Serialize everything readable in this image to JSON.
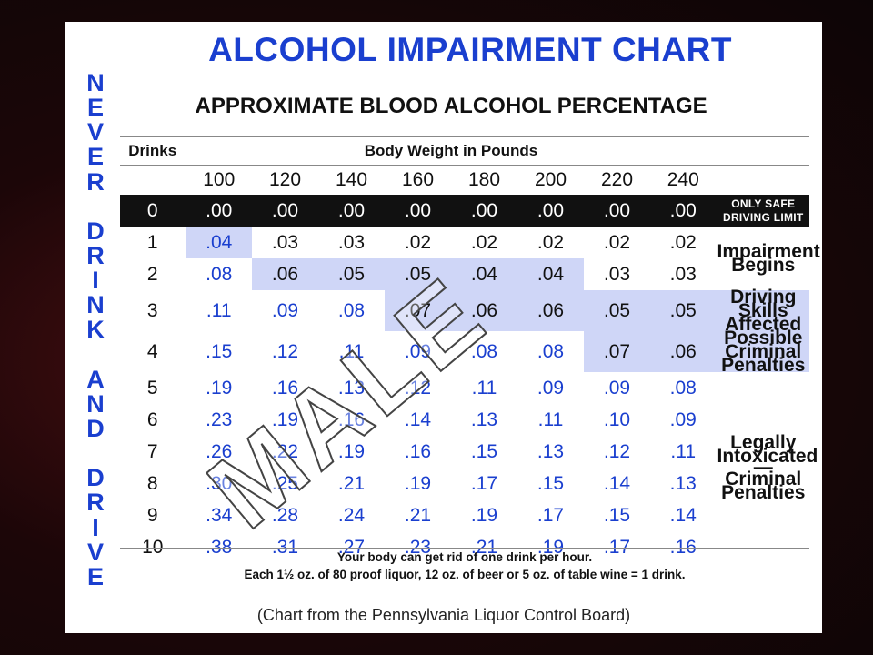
{
  "title": "ALCOHOL IMPAIRMENT CHART",
  "vertical_slogan": [
    "N",
    "E",
    "V",
    "E",
    "R",
    "",
    "D",
    "R",
    "I",
    "N",
    "K",
    "",
    "A",
    "N",
    "D",
    "",
    "D",
    "R",
    "I",
    "V",
    "E"
  ],
  "subtitle": "APPROXIMATE BLOOD ALCOHOL PERCENTAGE",
  "drinks_header": "Drinks",
  "weight_header": "Body Weight in Pounds",
  "weights": [
    "100",
    "120",
    "140",
    "160",
    "180",
    "200",
    "220",
    "240"
  ],
  "rows": [
    {
      "drinks": "0",
      "values": [
        ".00",
        ".00",
        ".00",
        ".00",
        ".00",
        ".00",
        ".00",
        ".00"
      ]
    },
    {
      "drinks": "1",
      "values": [
        ".04",
        ".03",
        ".03",
        ".02",
        ".02",
        ".02",
        ".02",
        ".02"
      ]
    },
    {
      "drinks": "2",
      "values": [
        ".08",
        ".06",
        ".05",
        ".05",
        ".04",
        ".04",
        ".03",
        ".03"
      ]
    },
    {
      "drinks": "3",
      "values": [
        ".11",
        ".09",
        ".08",
        ".07",
        ".06",
        ".06",
        ".05",
        ".05"
      ]
    },
    {
      "drinks": "4",
      "values": [
        ".15",
        ".12",
        ".11",
        ".09",
        ".08",
        ".08",
        ".07",
        ".06"
      ]
    },
    {
      "drinks": "5",
      "values": [
        ".19",
        ".16",
        ".13",
        ".12",
        ".11",
        ".09",
        ".09",
        ".08"
      ]
    },
    {
      "drinks": "6",
      "values": [
        ".23",
        ".19",
        ".16",
        ".14",
        ".13",
        ".11",
        ".10",
        ".09"
      ]
    },
    {
      "drinks": "7",
      "values": [
        ".26",
        ".22",
        ".19",
        ".16",
        ".15",
        ".13",
        ".12",
        ".11"
      ]
    },
    {
      "drinks": "8",
      "values": [
        ".30",
        ".25",
        ".21",
        ".19",
        ".17",
        ".15",
        ".14",
        ".13"
      ]
    },
    {
      "drinks": "9",
      "values": [
        ".34",
        ".28",
        ".24",
        ".21",
        ".19",
        ".17",
        ".15",
        ".14"
      ]
    },
    {
      "drinks": "10",
      "values": [
        ".38",
        ".31",
        ".27",
        ".23",
        ".21",
        ".19",
        ".17",
        ".16"
      ]
    }
  ],
  "side_labels": {
    "only_safe_1": "ONLY SAFE",
    "only_safe_2": "DRIVING LIMIT",
    "impairment_1": "Impairment",
    "impairment_2": "Begins",
    "driving_skills_1": "Driving Skills",
    "driving_skills_2": "Affected",
    "possible_1": "Possible",
    "possible_2": "Criminal Penalties",
    "legally_1": "Legally",
    "legally_2": "Intoxicated",
    "dash": "—",
    "criminal_1": "Criminal",
    "criminal_2": "Penalties"
  },
  "footnote_line1": "Your body can get rid of one drink per hour.",
  "footnote_line2": "Each 1½ oz. of 80 proof liquor, 12 oz. of beer or 5 oz. of table wine = 1 drink.",
  "source": "(Chart from the Pennsylvania Liquor Control Board)",
  "watermark": "MALE",
  "highlight_cells": [
    [
      1,
      0
    ],
    [
      2,
      1
    ],
    [
      2,
      2
    ],
    [
      2,
      3
    ],
    [
      2,
      4
    ],
    [
      2,
      5
    ],
    [
      3,
      3
    ],
    [
      3,
      4
    ],
    [
      3,
      5
    ],
    [
      3,
      6
    ],
    [
      3,
      7
    ],
    [
      4,
      6
    ],
    [
      4,
      7
    ]
  ],
  "dark_text_cells": [
    [
      1,
      1
    ],
    [
      1,
      2
    ],
    [
      1,
      3
    ],
    [
      1,
      4
    ],
    [
      1,
      5
    ],
    [
      1,
      6
    ],
    [
      1,
      7
    ],
    [
      2,
      1
    ],
    [
      2,
      2
    ],
    [
      2,
      3
    ],
    [
      2,
      4
    ],
    [
      2,
      5
    ],
    [
      2,
      6
    ],
    [
      2,
      7
    ],
    [
      3,
      3
    ],
    [
      3,
      4
    ],
    [
      3,
      5
    ],
    [
      3,
      6
    ],
    [
      3,
      7
    ],
    [
      4,
      6
    ],
    [
      4,
      7
    ]
  ],
  "colors": {
    "accent": "#1a3fcf",
    "highlight": "#cfd6f7",
    "black_row": "#111111"
  }
}
